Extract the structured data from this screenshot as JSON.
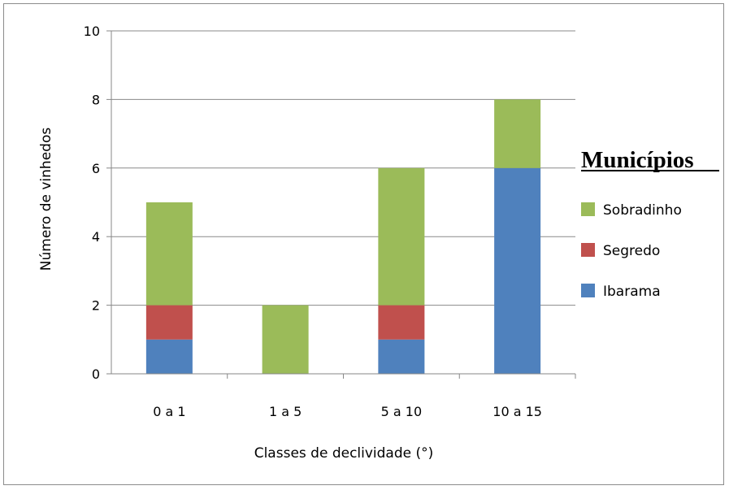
{
  "chart_data": {
    "type": "bar",
    "stacked": true,
    "categories": [
      "0 a 1",
      "1 a 5",
      "5 a 10",
      "10 a 15"
    ],
    "series": [
      {
        "name": "Ibarama",
        "color": "#4f81bd",
        "values": [
          1,
          0,
          1,
          6
        ]
      },
      {
        "name": "Segredo",
        "color": "#c0504d",
        "values": [
          1,
          0,
          1,
          0
        ]
      },
      {
        "name": "Sobradinho",
        "color": "#9bbb59",
        "values": [
          3,
          2,
          4,
          2
        ]
      }
    ],
    "xlabel": "Classes de declividade (°)",
    "ylabel": "Número de vinhedos",
    "ylim": [
      0,
      10
    ],
    "yticks": [
      "0",
      "2",
      "4",
      "6",
      "8",
      "10"
    ],
    "grid": true,
    "legend": {
      "title": "Municípios",
      "position": "right",
      "order": [
        "Sobradinho",
        "Segredo",
        "Ibarama"
      ]
    }
  }
}
